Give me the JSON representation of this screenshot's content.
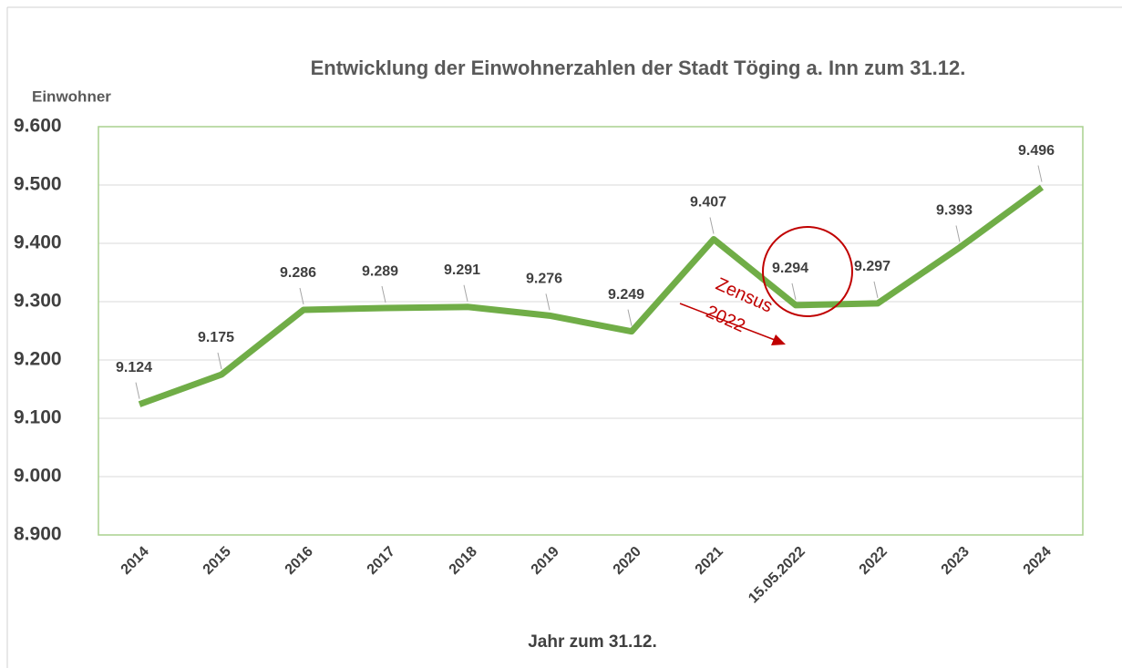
{
  "chart_data": {
    "type": "line",
    "title": "Entwicklung der Einwohnerzahlen der Stadt Töging a. Inn zum 31.12.",
    "y_label": "Einwohner",
    "x_label": "Jahr zum 31.12.",
    "categories": [
      "2014",
      "2015",
      "2016",
      "2017",
      "2018",
      "2019",
      "2020",
      "2021",
      "15.05.2022",
      "2022",
      "2023",
      "2024"
    ],
    "series": [
      {
        "name": "Einwohner",
        "color": "#70ad47",
        "values": [
          9124,
          9175,
          9286,
          9289,
          9291,
          9276,
          9249,
          9407,
          9294,
          9297,
          9393,
          9496
        ],
        "value_labels": [
          "9.124",
          "9.175",
          "9.286",
          "9.289",
          "9.291",
          "9.276",
          "9.249",
          "9.407",
          "9.294",
          "9.297",
          "9.393",
          "9.496"
        ]
      }
    ],
    "ylim": [
      8900,
      9600
    ],
    "yticks": [
      {
        "value": 8900,
        "label": "8.900"
      },
      {
        "value": 9000,
        "label": "9.000"
      },
      {
        "value": 9100,
        "label": "9.100"
      },
      {
        "value": 9200,
        "label": "9.200"
      },
      {
        "value": 9300,
        "label": "9.300"
      },
      {
        "value": 9400,
        "label": "9.400"
      },
      {
        "value": 9500,
        "label": "9.500"
      },
      {
        "value": 9600,
        "label": "9.600"
      }
    ],
    "grid": true,
    "annotations": [
      "Zensus",
      "2022"
    ]
  }
}
